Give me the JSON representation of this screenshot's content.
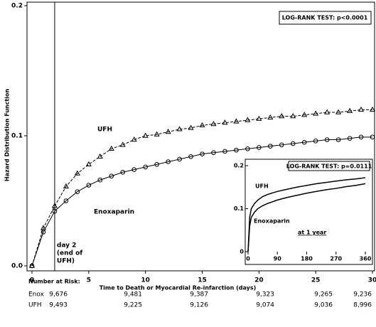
{
  "chart_data": [
    {
      "type": "line",
      "x_label": "Time to Death or Myocardial Re-infarction (days)",
      "y_label": "Hazard Distribution Function",
      "x": [
        0,
        1,
        2,
        3,
        4,
        5,
        6,
        7,
        8,
        9,
        10,
        11,
        12,
        13,
        14,
        15,
        16,
        17,
        18,
        19,
        20,
        21,
        22,
        23,
        24,
        25,
        26,
        27,
        28,
        29,
        30
      ],
      "series": [
        {
          "name": "UFH",
          "color": "#000000",
          "marker": "triangle",
          "dashed": true,
          "values": [
            0,
            0.029,
            0.046,
            0.061,
            0.071,
            0.078,
            0.084,
            0.09,
            0.093,
            0.097,
            0.1,
            0.101,
            0.103,
            0.105,
            0.106,
            0.108,
            0.109,
            0.11,
            0.111,
            0.112,
            0.113,
            0.114,
            0.115,
            0.115,
            0.116,
            0.117,
            0.118,
            0.118,
            0.119,
            0.12,
            0.12
          ]
        },
        {
          "name": "Enoxaparin",
          "color": "#000000",
          "marker": "circle",
          "dashed": false,
          "values": [
            0,
            0.026,
            0.042,
            0.05,
            0.057,
            0.062,
            0.066,
            0.069,
            0.072,
            0.074,
            0.076,
            0.078,
            0.08,
            0.082,
            0.084,
            0.086,
            0.087,
            0.088,
            0.089,
            0.09,
            0.091,
            0.092,
            0.093,
            0.094,
            0.095,
            0.096,
            0.097,
            0.097,
            0.098,
            0.099,
            0.099
          ]
        }
      ],
      "xlim": [
        0,
        30
      ],
      "xticks": [
        0,
        5,
        10,
        15,
        20,
        25,
        30
      ],
      "ylim": [
        0,
        0.2
      ],
      "yticks": [
        {
          "value": 0,
          "label": "0.0"
        },
        0.1,
        0.2
      ],
      "vline": 2,
      "vline_label": [
        "day 2",
        "(end of",
        "UFH)"
      ],
      "annotation": "LOG-RANK TEST: p<0.0001"
    },
    {
      "type": "line",
      "x": [
        0,
        5,
        10,
        20,
        30,
        45,
        60,
        90,
        120,
        150,
        180,
        210,
        240,
        270,
        300,
        330,
        360
      ],
      "series": [
        {
          "name": "UFH",
          "color": "#000000",
          "values": [
            0,
            0.08,
            0.1,
            0.112,
            0.12,
            0.128,
            0.133,
            0.14,
            0.145,
            0.15,
            0.154,
            0.158,
            0.161,
            0.164,
            0.167,
            0.169,
            0.172
          ]
        },
        {
          "name": "Enoxaparin",
          "color": "#000000",
          "values": [
            0,
            0.06,
            0.08,
            0.092,
            0.1,
            0.107,
            0.112,
            0.12,
            0.126,
            0.131,
            0.136,
            0.14,
            0.144,
            0.147,
            0.151,
            0.154,
            0.158
          ]
        }
      ],
      "xlim": [
        0,
        360
      ],
      "xticks": [
        0,
        90,
        180,
        270,
        360
      ],
      "ylim": [
        0,
        0.2
      ],
      "yticks": [
        0,
        0.1,
        0.2
      ],
      "annotation": "LOG-RANK TEST: p=0.0111",
      "note": "at 1 year"
    }
  ],
  "number_at_risk": {
    "title": "Number at Risk:",
    "rows": [
      {
        "label": "Enox",
        "values": [
          "9,676",
          "9,481",
          "9,387",
          "9,323",
          "9,265",
          "9,236"
        ]
      },
      {
        "label": "UFH",
        "values": [
          "9,493",
          "9,225",
          "9,126",
          "9,074",
          "9,036",
          "8,996"
        ]
      }
    ]
  }
}
